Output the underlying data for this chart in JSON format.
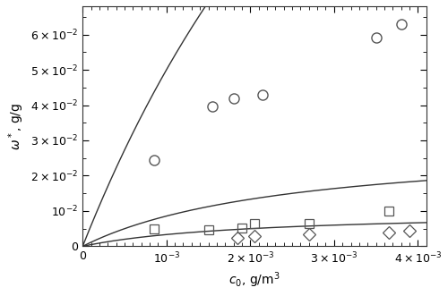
{
  "title": "",
  "xlabel": "$c_0$, g/m$^3$",
  "ylabel": "$\\omega^*$, g/g",
  "xlim": [
    0,
    0.0041
  ],
  "ylim": [
    0,
    0.068
  ],
  "circle_data": {
    "x": [
      0.00085,
      0.00155,
      0.0018,
      0.00215,
      0.0035,
      0.0038
    ],
    "y": [
      0.0245,
      0.0395,
      0.042,
      0.043,
      0.059,
      0.063
    ]
  },
  "square_data": {
    "x": [
      0.00085,
      0.0015,
      0.0019,
      0.00205,
      0.0027,
      0.00365
    ],
    "y": [
      0.005,
      0.0047,
      0.0053,
      0.0065,
      0.0065,
      0.01
    ]
  },
  "diamond_data": {
    "x": [
      0.00185,
      0.00205,
      0.0027,
      0.00365,
      0.0039
    ],
    "y": [
      0.0025,
      0.003,
      0.0033,
      0.0038,
      0.0043
    ]
  },
  "langmuir_circle": {
    "omega_max": 0.3,
    "K": 200
  },
  "langmuir_square": {
    "omega_max": 0.03,
    "K": 400
  },
  "langmuir_diamond": {
    "omega_max": 0.01,
    "K": 500
  },
  "marker_color": "#555555",
  "line_color": "#333333",
  "marker_size": 8,
  "linewidth": 1.0,
  "background_color": "#ffffff"
}
